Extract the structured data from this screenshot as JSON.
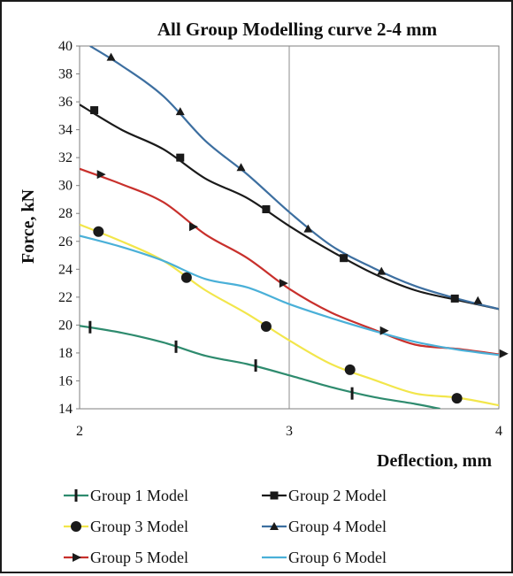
{
  "chart_data": {
    "type": "line",
    "title": "All Group Modelling curve 2-4 mm",
    "xlabel": "Deflection, mm",
    "ylabel": "Force, kN",
    "xlim": [
      2,
      4
    ],
    "ylim": [
      14,
      40
    ],
    "x_ticks": [
      "2",
      "3",
      "4"
    ],
    "y_ticks": [
      "14",
      "16",
      "18",
      "20",
      "22",
      "24",
      "26",
      "28",
      "30",
      "32",
      "34",
      "36",
      "38",
      "40"
    ],
    "grid": "vertical at x=3",
    "legend_position": "bottom",
    "series": [
      {
        "name": "Group 1 Model",
        "color": "#2e8b6e",
        "marker": "vbar",
        "line": [
          [
            2.0,
            19.95
          ],
          [
            2.2,
            19.45
          ],
          [
            2.4,
            18.75
          ],
          [
            2.6,
            17.8
          ],
          [
            2.8,
            17.2
          ],
          [
            3.0,
            16.4
          ],
          [
            3.2,
            15.55
          ],
          [
            3.4,
            14.85
          ],
          [
            3.6,
            14.35
          ],
          [
            3.72,
            14.0
          ]
        ],
        "markers": [
          [
            2.05,
            19.85
          ],
          [
            2.46,
            18.45
          ],
          [
            2.84,
            17.1
          ],
          [
            3.3,
            15.1
          ]
        ]
      },
      {
        "name": "Group 2 Model",
        "color": "#1a1a1a",
        "marker": "square",
        "line": [
          [
            2.0,
            35.8
          ],
          [
            2.2,
            34.0
          ],
          [
            2.4,
            32.6
          ],
          [
            2.6,
            30.5
          ],
          [
            2.8,
            29.1
          ],
          [
            3.0,
            27.1
          ],
          [
            3.2,
            25.3
          ],
          [
            3.4,
            23.7
          ],
          [
            3.6,
            22.5
          ],
          [
            3.8,
            21.8
          ],
          [
            4.0,
            21.15
          ]
        ],
        "markers": [
          [
            2.07,
            35.4
          ],
          [
            2.48,
            32.0
          ],
          [
            2.89,
            28.3
          ],
          [
            3.26,
            24.8
          ],
          [
            3.79,
            21.9
          ]
        ]
      },
      {
        "name": "Group 3 Model",
        "color": "#f2e64b",
        "marker": "circle",
        "line": [
          [
            2.0,
            27.2
          ],
          [
            2.2,
            26.0
          ],
          [
            2.4,
            24.6
          ],
          [
            2.6,
            22.5
          ],
          [
            2.8,
            20.8
          ],
          [
            3.0,
            18.9
          ],
          [
            3.2,
            17.2
          ],
          [
            3.4,
            16.1
          ],
          [
            3.6,
            15.1
          ],
          [
            3.8,
            14.8
          ],
          [
            4.0,
            14.25
          ]
        ],
        "markers": [
          [
            2.09,
            26.7
          ],
          [
            2.51,
            23.4
          ],
          [
            2.89,
            19.9
          ],
          [
            3.29,
            16.8
          ],
          [
            3.8,
            14.75
          ]
        ]
      },
      {
        "name": "Group 4 Model",
        "color": "#3d6fa0",
        "marker": "triangle",
        "line": [
          [
            2.05,
            40.0
          ],
          [
            2.2,
            38.6
          ],
          [
            2.4,
            36.4
          ],
          [
            2.6,
            33.2
          ],
          [
            2.8,
            30.8
          ],
          [
            3.0,
            28.1
          ],
          [
            3.2,
            25.7
          ],
          [
            3.4,
            24.1
          ],
          [
            3.6,
            22.8
          ],
          [
            3.8,
            21.9
          ],
          [
            4.0,
            21.15
          ]
        ],
        "markers": [
          [
            2.15,
            39.2
          ],
          [
            2.48,
            35.3
          ],
          [
            2.77,
            31.3
          ],
          [
            3.09,
            26.9
          ],
          [
            3.44,
            23.85
          ],
          [
            3.9,
            21.75
          ]
        ]
      },
      {
        "name": "Group 5 Model",
        "color": "#c8302c",
        "marker": "right-triangle",
        "line": [
          [
            2.0,
            31.2
          ],
          [
            2.2,
            30.1
          ],
          [
            2.4,
            28.8
          ],
          [
            2.6,
            26.5
          ],
          [
            2.8,
            24.8
          ],
          [
            3.0,
            22.6
          ],
          [
            3.2,
            20.9
          ],
          [
            3.4,
            19.7
          ],
          [
            3.6,
            18.6
          ],
          [
            3.8,
            18.3
          ],
          [
            4.0,
            17.9
          ]
        ],
        "markers": [
          [
            2.1,
            30.8
          ],
          [
            2.54,
            27.05
          ],
          [
            2.97,
            23.0
          ],
          [
            3.45,
            19.6
          ],
          [
            4.02,
            17.95
          ]
        ]
      },
      {
        "name": "Group 6 Model",
        "color": "#4ab0d8",
        "marker": "none",
        "line": [
          [
            2.0,
            26.4
          ],
          [
            2.2,
            25.6
          ],
          [
            2.4,
            24.6
          ],
          [
            2.6,
            23.3
          ],
          [
            2.8,
            22.7
          ],
          [
            3.0,
            21.5
          ],
          [
            3.2,
            20.5
          ],
          [
            3.4,
            19.6
          ],
          [
            3.6,
            18.8
          ],
          [
            3.8,
            18.25
          ],
          [
            4.0,
            17.85
          ]
        ],
        "markers": []
      }
    ]
  }
}
